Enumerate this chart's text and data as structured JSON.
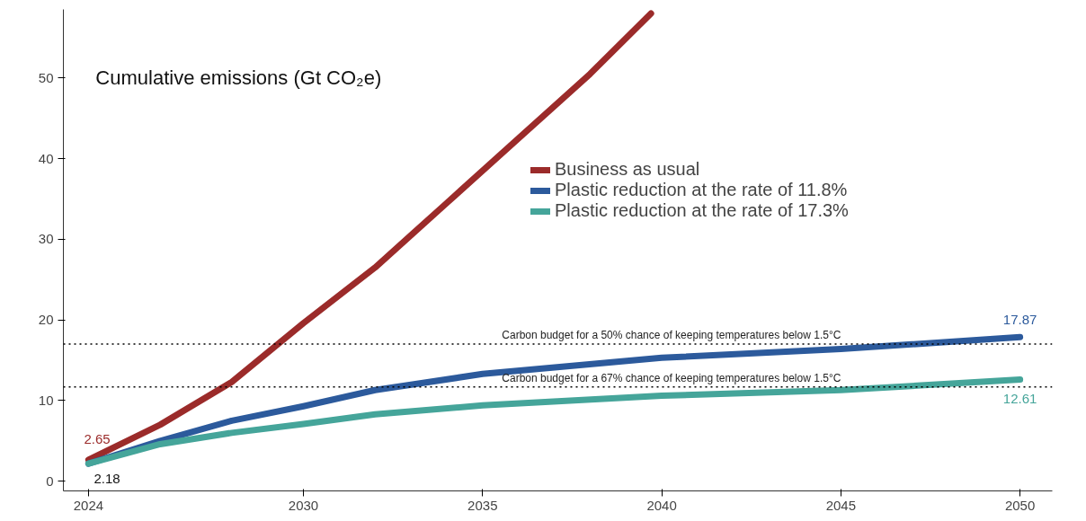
{
  "chart_data": {
    "type": "line",
    "title": "Cumulative emissions (Gt CO₂e)",
    "xlim": [
      2023.3,
      2050.9
    ],
    "xticks": [
      2024,
      2030,
      2035,
      2040,
      2045,
      2050
    ],
    "ylim": [
      -1.2,
      58.5
    ],
    "yticks": [
      0,
      10,
      20,
      30,
      40,
      50
    ],
    "grid": false,
    "legend": "top right",
    "marker": "none",
    "line_style": "solid",
    "series": [
      {
        "name": "Business as usual",
        "color": "#9b2b2a",
        "x": [
          2024,
          2026,
          2028,
          2030,
          2032,
          2034,
          2036,
          2038,
          2039.7
        ],
        "values": [
          2.65,
          7,
          12.3,
          19.6,
          26.5,
          34.5,
          42.5,
          50.5,
          58
        ],
        "value_labels": [
          "2.65",
          null,
          null,
          null,
          null,
          null,
          null,
          null,
          null
        ]
      },
      {
        "name": "Plastic reduction at the rate of 11.8%",
        "color": "#2c5a9c",
        "x": [
          2024,
          2026,
          2028,
          2030,
          2032,
          2035,
          2040,
          2045,
          2050
        ],
        "values": [
          2.18,
          5.0,
          7.5,
          9.3,
          11.3,
          13.3,
          15.3,
          16.4,
          17.87
        ],
        "value_labels": [
          "2.18",
          null,
          null,
          null,
          null,
          null,
          null,
          null,
          "17.87"
        ]
      },
      {
        "name": "Plastic reduction at the rate of 17.3%",
        "color": "#45a59a",
        "x": [
          2024,
          2026,
          2028,
          2030,
          2032,
          2035,
          2040,
          2045,
          2050
        ],
        "values": [
          2.18,
          4.6,
          6.0,
          7.1,
          8.3,
          9.4,
          10.6,
          11.3,
          12.61
        ],
        "value_labels": [
          null,
          null,
          null,
          null,
          null,
          null,
          null,
          null,
          "12.61"
        ]
      }
    ],
    "ref_lines": [
      {
        "axis": "y",
        "value": 17,
        "label": "Carbon budget for a 50% chance of keeping temperatures below 1.5°C",
        "color": "#000000",
        "line_style": "dotted"
      },
      {
        "axis": "y",
        "value": 11.7,
        "label": "Carbon budget for a 67% chance of keeping temperatures below 1.5°C",
        "color": "#000000",
        "line_style": "dotted"
      }
    ]
  }
}
